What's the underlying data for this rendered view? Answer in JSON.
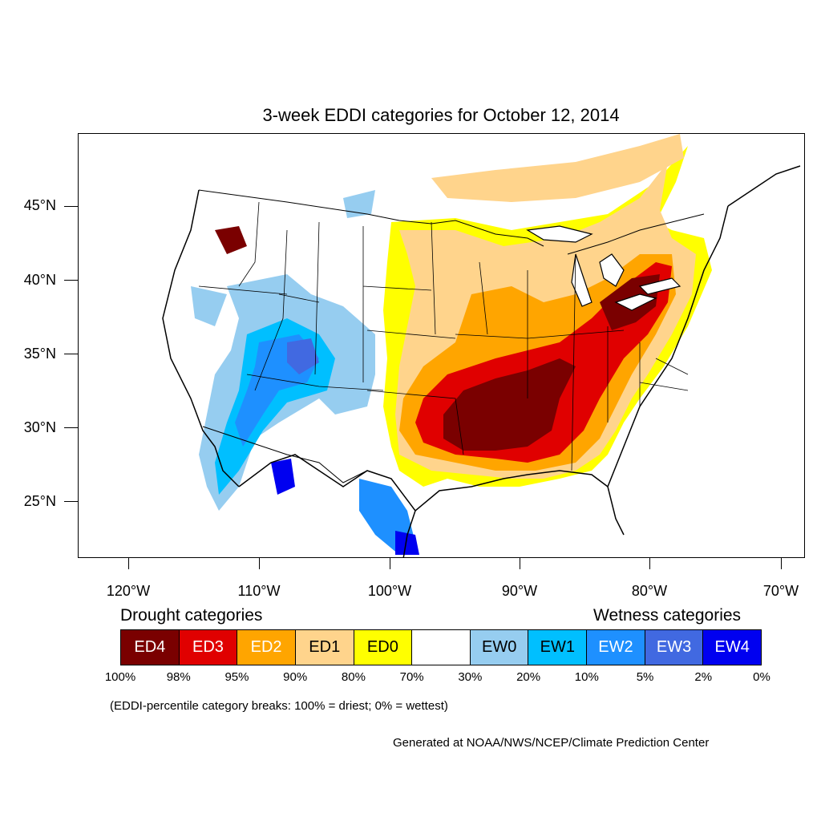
{
  "map": {
    "title": "3-week EDDI categories for October 12, 2014",
    "lat_labels": [
      "45°N",
      "40°N",
      "35°N",
      "30°N",
      "25°N"
    ],
    "lon_labels": [
      "120°W",
      "110°W",
      "100°W",
      "90°W",
      "80°W",
      "70°W"
    ],
    "colors": {
      "ED4": "#7a0000",
      "ED3": "#e00000",
      "ED2": "#ffa500",
      "ED1": "#ffd48c",
      "ED0": "#ffff00",
      "neutral": "#ffffff",
      "EW0": "#96cdf0",
      "EW1": "#00bfff",
      "EW2": "#1e90ff",
      "EW3": "#4169e1",
      "EW4": "#0000f0",
      "outline": "#000000"
    }
  },
  "legend": {
    "drought_heading": "Drought categories",
    "wetness_heading": "Wetness categories",
    "categories": [
      {
        "label": "ED4",
        "color": "#7a0000",
        "text_color": "#ffffff"
      },
      {
        "label": "ED3",
        "color": "#e00000",
        "text_color": "#ffffff"
      },
      {
        "label": "ED2",
        "color": "#ffa500",
        "text_color": "#ffffff"
      },
      {
        "label": "ED1",
        "color": "#ffd48c",
        "text_color": "#000000"
      },
      {
        "label": "ED0",
        "color": "#ffff00",
        "text_color": "#000000"
      },
      {
        "label": "",
        "color": "#ffffff",
        "text_color": "#000000"
      },
      {
        "label": "EW0",
        "color": "#96cdf0",
        "text_color": "#000000"
      },
      {
        "label": "EW1",
        "color": "#00bfff",
        "text_color": "#000000"
      },
      {
        "label": "EW2",
        "color": "#1e90ff",
        "text_color": "#ffffff"
      },
      {
        "label": "EW3",
        "color": "#4169e1",
        "text_color": "#ffffff"
      },
      {
        "label": "EW4",
        "color": "#0000f0",
        "text_color": "#ffffff"
      }
    ],
    "breaks": [
      "100%",
      "98%",
      "95%",
      "90%",
      "80%",
      "70%",
      "30%",
      "20%",
      "10%",
      "5%",
      "2%",
      "0%"
    ],
    "note": "(EDDI-percentile category breaks: 100% = driest; 0% = wettest)"
  },
  "credit": "Generated at NOAA/NWS/NCEP/Climate Prediction Center"
}
